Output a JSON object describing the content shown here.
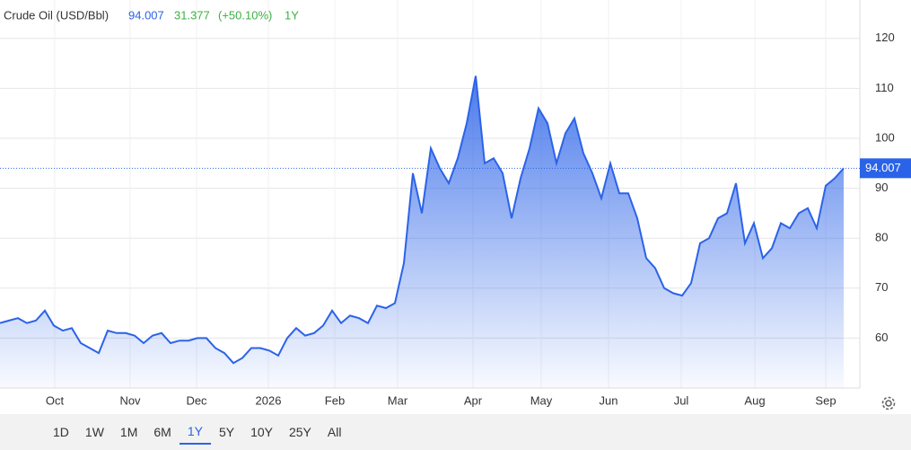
{
  "chart_data": {
    "type": "area",
    "title": "Crude Oil (USD/Bbl)",
    "change": 31.377,
    "change_percent_label": "(+50.10%)",
    "selected_range": "1Y",
    "range_buttons": [
      "1D",
      "1W",
      "1M",
      "6M",
      "1Y",
      "5Y",
      "10Y",
      "25Y",
      "All"
    ],
    "color": "#2b63e8",
    "values": [
      63,
      63.5,
      64,
      63,
      63.5,
      65.5,
      62.5,
      61.5,
      62,
      59,
      58,
      57,
      61.5,
      61,
      61,
      60.5,
      59,
      60.5,
      61,
      59,
      59.5,
      59.5,
      60,
      60,
      58,
      57,
      55,
      56,
      58,
      58,
      57.5,
      56.5,
      60,
      62,
      60.5,
      61,
      62.5,
      65.5,
      63,
      64.5,
      64,
      63,
      66.5,
      66,
      67,
      75,
      93,
      85,
      98,
      94,
      91,
      96,
      103,
      112.5,
      95,
      96,
      93,
      84,
      92,
      98,
      106,
      103,
      95,
      101,
      104,
      97,
      93,
      88,
      95,
      89,
      89,
      84,
      76,
      74,
      70,
      69,
      68.5,
      71,
      79,
      80,
      84,
      85,
      91,
      79,
      83,
      76,
      78,
      83,
      82,
      85,
      86,
      82,
      90.5,
      92,
      94.007
    ],
    "xlim": [
      0,
      94
    ],
    "xticks": [
      {
        "value": 6.1,
        "label": "Oct"
      },
      {
        "value": 14.5,
        "label": "Nov"
      },
      {
        "value": 21.9,
        "label": "Dec"
      },
      {
        "value": 29.9,
        "label": "2026"
      },
      {
        "value": 37.3,
        "label": "Feb"
      },
      {
        "value": 44.3,
        "label": "Mar"
      },
      {
        "value": 52.7,
        "label": "Apr"
      },
      {
        "value": 60.3,
        "label": "May"
      },
      {
        "value": 67.8,
        "label": "Jun"
      },
      {
        "value": 75.9,
        "label": "Jul"
      },
      {
        "value": 84.1,
        "label": "Aug"
      },
      {
        "value": 92.0,
        "label": "Sep"
      }
    ],
    "ylim": [
      50,
      127.7
    ],
    "yticks": [
      60,
      70,
      80,
      90,
      100,
      110,
      120
    ],
    "grid": true
  }
}
